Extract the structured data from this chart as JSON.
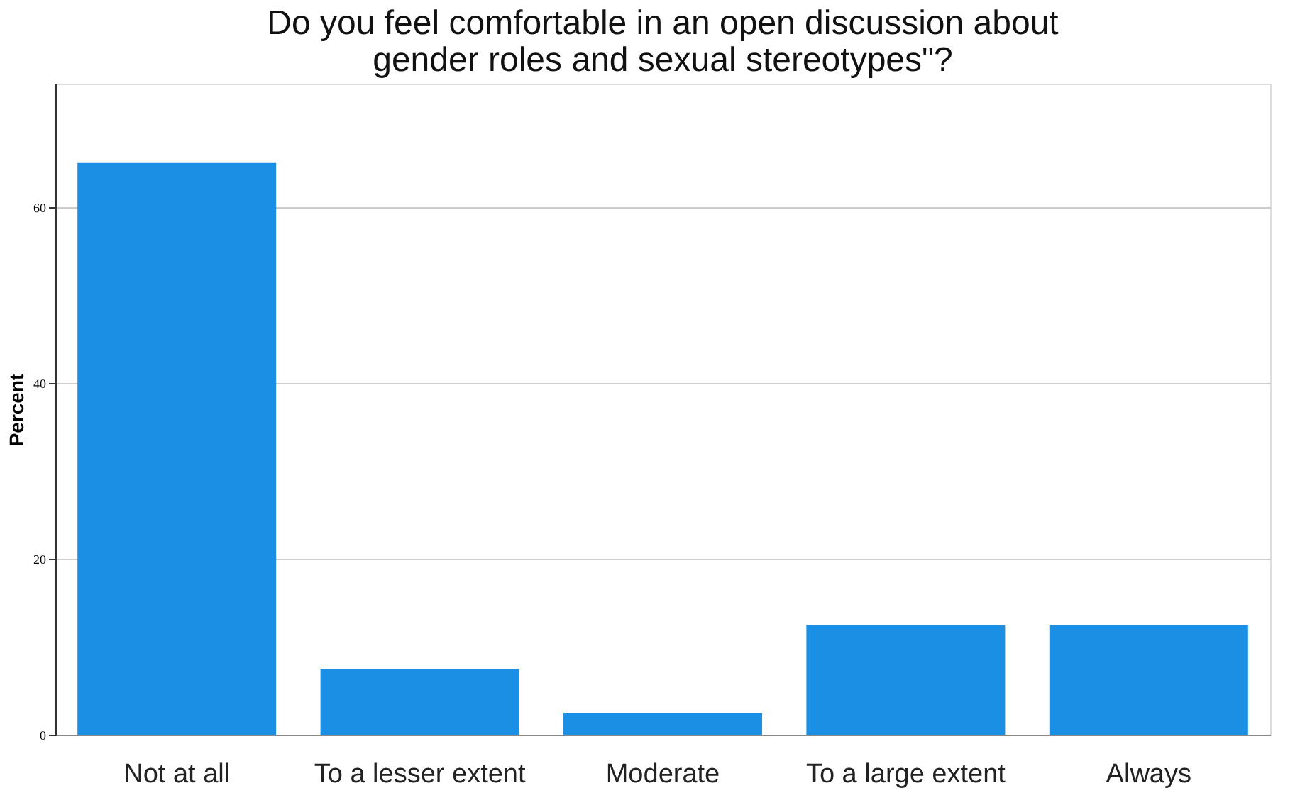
{
  "chart_data": {
    "type": "bar",
    "title": [
      "Do you feel comfortable in an open discussion about",
      "gender roles and sexual stereotypes\"?"
    ],
    "ylabel": "Percent",
    "categories": [
      "Not at all",
      "To a lesser extent",
      "Moderate",
      "To a large extent",
      "Always"
    ],
    "values": [
      65,
      7.5,
      2.5,
      12.5,
      12.5
    ],
    "color": "#1a8fe3",
    "ylim": [
      0,
      74
    ],
    "yticks": [
      0,
      20,
      40,
      60
    ],
    "grid": "y"
  }
}
